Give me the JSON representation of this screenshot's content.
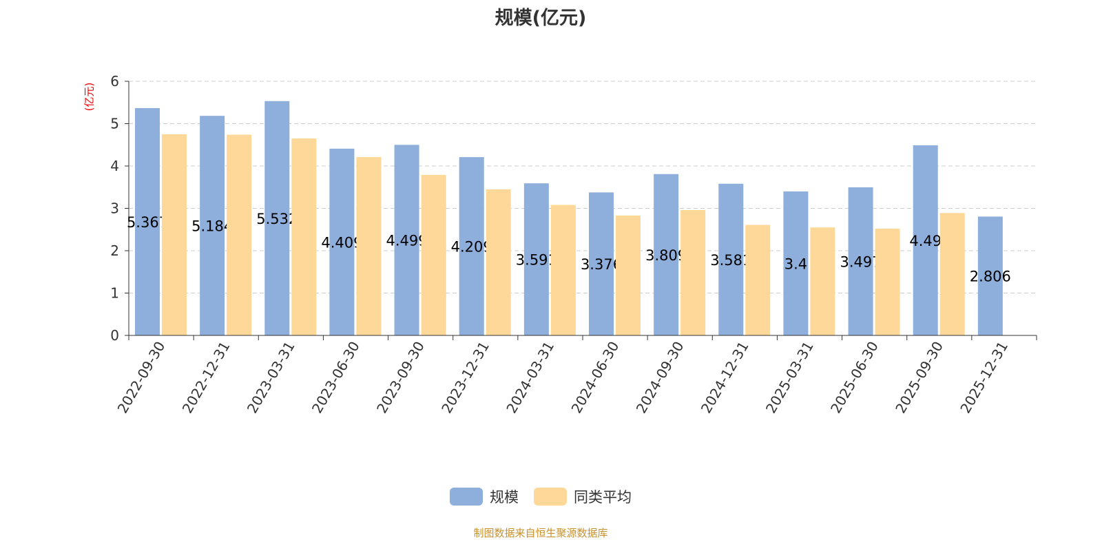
{
  "chart_data": {
    "type": "bar",
    "title": "规模(亿元)",
    "ylabel": "(亿元)",
    "xlabel": "",
    "ylim": [
      0,
      6
    ],
    "yticks": [
      0,
      1,
      2,
      3,
      4,
      5,
      6
    ],
    "grid": true,
    "legend_position": "bottom",
    "categories": [
      "2022-09-30",
      "2022-12-31",
      "2023-03-31",
      "2023-06-30",
      "2023-09-30",
      "2023-12-31",
      "2024-03-31",
      "2024-06-30",
      "2024-09-30",
      "2024-12-31",
      "2025-03-31",
      "2025-06-30",
      "2025-09-30",
      "2025-12-31"
    ],
    "series": [
      {
        "name": "规模",
        "color": "#8eaedb",
        "values": [
          5.367,
          5.184,
          5.532,
          4.409,
          4.499,
          4.209,
          3.591,
          3.376,
          3.809,
          3.581,
          3.4,
          3.497,
          4.49,
          2.806
        ],
        "labels": true
      },
      {
        "name": "同类平均",
        "color": "#fed899",
        "values": [
          4.75,
          4.74,
          4.65,
          4.21,
          3.79,
          3.45,
          3.08,
          2.83,
          2.96,
          2.61,
          2.55,
          2.52,
          2.89,
          null
        ]
      }
    ]
  },
  "footer": "制图数据来自恒生聚源数据库"
}
